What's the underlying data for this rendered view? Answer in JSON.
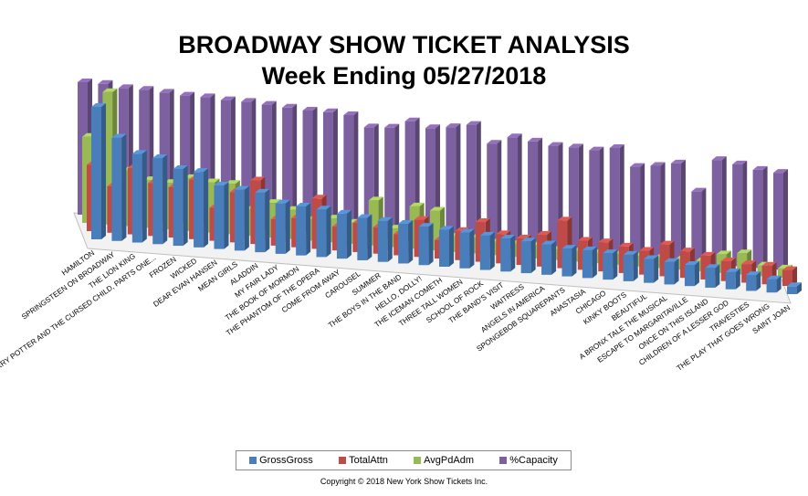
{
  "title": {
    "line1": "BROADWAY SHOW TICKET ANALYSIS",
    "line2": "Week Ending 05/27/2018"
  },
  "copyright": "Copyright © 2018 New York Show Tickets Inc.",
  "chart_data": {
    "type": "bar",
    "style": "3d-clustered-column",
    "title": "BROADWAY SHOW TICKET ANALYSIS Week Ending 05/27/2018",
    "grid": false,
    "legend_position": "bottom",
    "categories": [
      "HAMILTON",
      "SPRINGSTEEN ON BROADWAY",
      "THE LION KING",
      "HARRY POTTER AND THE CURSED CHILD, PARTS ONE...",
      "FROZEN",
      "WICKED",
      "DEAR EVAN HANSEN",
      "MEAN GIRLS",
      "ALADDIN",
      "MY FAIR LADY",
      "THE BOOK OF MORMON",
      "THE PHANTOM OF THE OPERA",
      "COME FROM AWAY",
      "CAROUSEL",
      "SUMMER",
      "THE BOYS IN THE BAND",
      "HELLO, DOLLY!",
      "THE ICEMAN COMETH",
      "THREE TALL WOMEN",
      "SCHOOL OF ROCK",
      "THE BAND'S VISIT",
      "WAITRESS",
      "ANGELS IN AMERICA",
      "SPONGEBOB SQUAREPANTS",
      "ANASTASIA",
      "CHICAGO",
      "KINKY BOOTS",
      "BEAUTIFUL",
      "A BRONX TALE THE MUSICAL",
      "ESCAPE TO MARGARITAVILLE",
      "ONCE ON THIS ISLAND",
      "CHILDREN OF A LESSER GOD",
      "TRAVESTIES",
      "THE PLAY THAT GOES WRONG",
      "SAINT JOAN"
    ],
    "series": [
      {
        "name": "GrossGross",
        "color": "#4a7ebb",
        "values": [
          100,
          78,
          67,
          65,
          58,
          57,
          48,
          46,
          45,
          38,
          37,
          36,
          34,
          32,
          31,
          30,
          29,
          28,
          27,
          26,
          25,
          24,
          23,
          21,
          21,
          20,
          20,
          18,
          17,
          16,
          15,
          13,
          12,
          10,
          6
        ]
      },
      {
        "name": "TotalAttn",
        "color": "#be4b48",
        "values": [
          50,
          35,
          50,
          40,
          38,
          45,
          25,
          38,
          48,
          20,
          22,
          38,
          18,
          22,
          20,
          16,
          28,
          14,
          22,
          30,
          22,
          20,
          24,
          36,
          22,
          22,
          20,
          18,
          24,
          20,
          18,
          15,
          14,
          14,
          12
        ]
      },
      {
        "name": "AvgPdAdm",
        "color": "#98b954",
        "values": [
          65,
          100,
          42,
          36,
          35,
          40,
          38,
          38,
          20,
          26,
          22,
          16,
          18,
          16,
          34,
          14,
          32,
          30,
          12,
          12,
          10,
          10,
          10,
          8,
          8,
          8,
          8,
          8,
          8,
          8,
          8,
          14,
          16,
          8,
          7
        ]
      },
      {
        "name": "%Capacity",
        "color": "#7d60a0",
        "values": [
          100,
          100,
          98,
          98,
          97,
          96,
          96,
          95,
          95,
          94,
          93,
          92,
          92,
          91,
          83,
          84,
          90,
          86,
          88,
          91,
          78,
          84,
          82,
          80,
          80,
          79,
          82,
          69,
          71,
          74,
          54,
          79,
          77,
          74,
          73
        ]
      }
    ]
  }
}
